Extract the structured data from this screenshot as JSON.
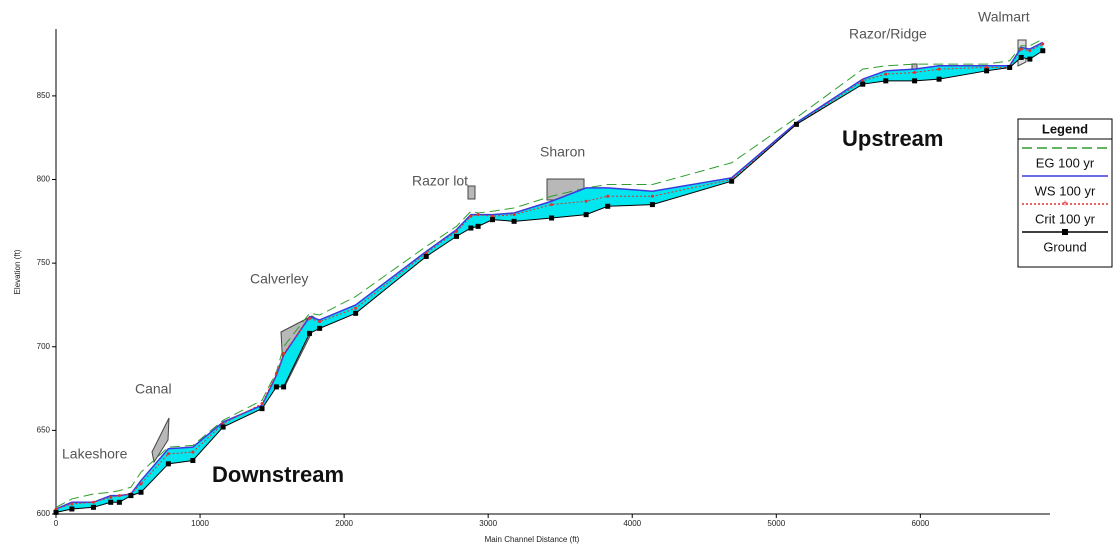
{
  "chart_data": {
    "type": "line",
    "x_label": "Main Channel Distance (ft)",
    "y_label": "Elevation (ft)",
    "x": [
      0,
      110,
      260,
      380,
      440,
      520,
      590,
      780,
      950,
      1160,
      1430,
      1530,
      1580,
      1760,
      1830,
      2080,
      2570,
      2780,
      2880,
      2930,
      3030,
      3180,
      3440,
      3680,
      3830,
      4140,
      4690,
      5140,
      5600,
      5760,
      5960,
      6130,
      6460,
      6620,
      6700,
      6760,
      6850
    ],
    "series": [
      {
        "name": "EG  100 yr",
        "color": "#2e9e2e",
        "style": "dashed",
        "values": [
          604,
          609,
          612,
          613,
          614,
          616,
          625,
          640,
          641,
          656,
          668,
          685,
          700,
          720,
          719,
          730,
          760,
          772,
          781,
          780,
          781,
          783,
          790,
          795,
          797,
          797,
          810,
          837,
          866,
          868,
          869,
          869,
          869,
          871,
          880,
          880,
          884
        ]
      },
      {
        "name": "WS  100 yr",
        "color": "#3b3bdd",
        "style": "solid",
        "values": [
          603,
          607,
          607,
          611,
          611,
          612,
          620,
          639,
          640,
          655,
          665,
          683,
          695,
          718,
          716,
          725,
          757,
          770,
          779,
          779,
          779,
          780,
          787,
          795,
          795,
          793,
          801,
          834,
          860,
          865,
          866,
          868,
          868,
          868,
          879,
          878,
          882
        ]
      },
      {
        "name": "Crit  100 yr",
        "color": "#e03030",
        "style": "dotted",
        "values": [
          603,
          606,
          607,
          610,
          611,
          612,
          618,
          636,
          637,
          654,
          666,
          684,
          696,
          717,
          715,
          723,
          756,
          769,
          778,
          779,
          778,
          779,
          785,
          787,
          790,
          790,
          800,
          833,
          859,
          863,
          864,
          866,
          867,
          867,
          878,
          877,
          881
        ]
      },
      {
        "name": "Ground",
        "color": "#000000",
        "style": "ground",
        "values": [
          601,
          603,
          604,
          607,
          607,
          611,
          613,
          630,
          632,
          652,
          663,
          676,
          676,
          708,
          711,
          720,
          754,
          766,
          771,
          772,
          776,
          775,
          777,
          779,
          784,
          785,
          799,
          833,
          857,
          859,
          859,
          860,
          865,
          867,
          873,
          872,
          877
        ]
      }
    ],
    "fill_color": "#00e5ee",
    "xlim": [
      0,
      6900
    ],
    "ylim": [
      600,
      890
    ],
    "xticks": [
      0,
      1000,
      2000,
      3000,
      4000,
      5000,
      6000
    ],
    "yticks": [
      600,
      650,
      700,
      750,
      800,
      850
    ],
    "legend_title": "Legend",
    "legend_position": "right",
    "annotations": [
      "Lakeshore",
      "Canal",
      "Calverley",
      "Razor lot",
      "Sharon",
      "Razor/Ridge",
      "Walmart"
    ],
    "reach_labels": [
      "Downstream",
      "Upstream"
    ]
  }
}
